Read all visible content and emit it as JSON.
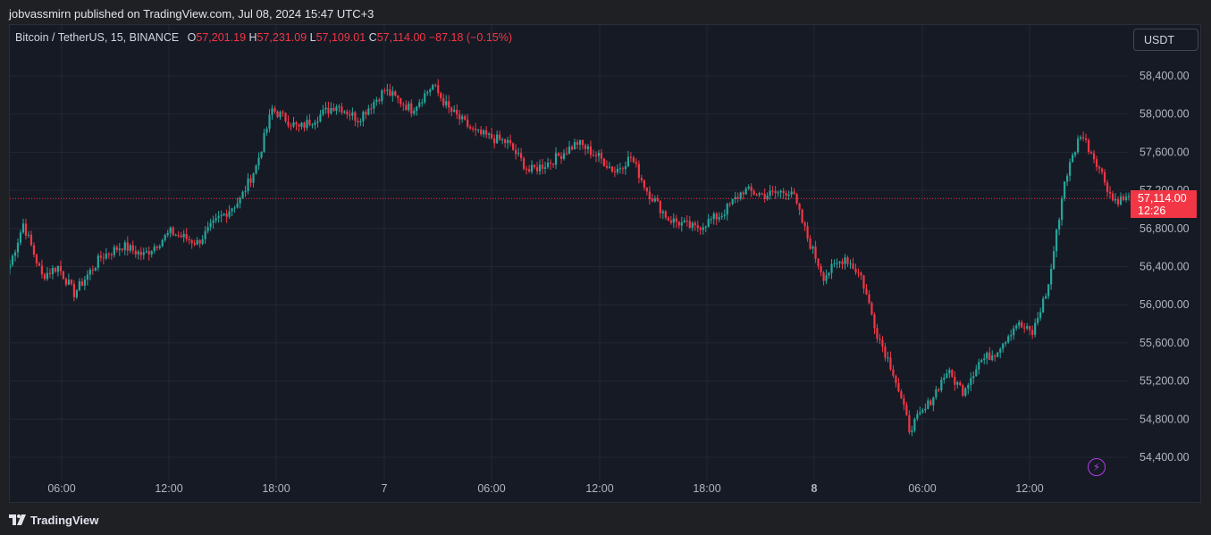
{
  "header": {
    "published_text": "jobvassmirn published on TradingView.com, Jul 08, 2024 15:47 UTC+3"
  },
  "legend": {
    "symbol": "Bitcoin / TetherUS, 15, BINANCE",
    "o_label": "O",
    "o_value": "57,201.19",
    "h_label": "H",
    "h_value": "57,231.09",
    "l_label": "L",
    "l_value": "57,109.01",
    "c_label": "C",
    "c_value": "57,114.00",
    "change": "−87.18 (−0.15%)"
  },
  "currency_button": "USDT",
  "last_price": {
    "price": "57,114.00",
    "countdown": "12:26"
  },
  "brand": "TradingView",
  "icons": {
    "bolt": "lightning-icon",
    "logo": "tradingview-logo-icon"
  },
  "colors": {
    "up": "#26a69a",
    "down": "#f23645",
    "background": "#161a25",
    "grid": "#232734"
  },
  "chart_data": {
    "type": "candlestick",
    "title": "Bitcoin / TetherUS, 15, BINANCE",
    "y_ticks": [
      "58,400.00",
      "58,000.00",
      "57,600.00",
      "57,200.00",
      "56,800.00",
      "56,400.00",
      "56,000.00",
      "55,600.00",
      "55,200.00",
      "54,800.00",
      "54,400.00"
    ],
    "y_tick_values": [
      58400,
      58000,
      57600,
      57200,
      56800,
      56400,
      56000,
      55600,
      55200,
      54800,
      54400
    ],
    "x_ticks": [
      "06:00",
      "12:00",
      "18:00",
      "7",
      "06:00",
      "12:00",
      "18:00",
      "8",
      "06:00",
      "12:00"
    ],
    "x_tick_bold": [
      false,
      false,
      false,
      false,
      false,
      false,
      false,
      true,
      false,
      false
    ],
    "ylim": [
      54250,
      58800
    ],
    "grid": true,
    "keypoints": [
      {
        "t": 0,
        "p": 56420
      },
      {
        "t": 5,
        "p": 56850
      },
      {
        "t": 12,
        "p": 56300
      },
      {
        "t": 18,
        "p": 56400
      },
      {
        "t": 24,
        "p": 56120
      },
      {
        "t": 34,
        "p": 56500
      },
      {
        "t": 42,
        "p": 56620
      },
      {
        "t": 50,
        "p": 56520
      },
      {
        "t": 60,
        "p": 56760
      },
      {
        "t": 70,
        "p": 56650
      },
      {
        "t": 78,
        "p": 56900
      },
      {
        "t": 86,
        "p": 57100
      },
      {
        "t": 92,
        "p": 57450
      },
      {
        "t": 98,
        "p": 58050
      },
      {
        "t": 108,
        "p": 57850
      },
      {
        "t": 122,
        "p": 58100
      },
      {
        "t": 130,
        "p": 57950
      },
      {
        "t": 140,
        "p": 58250
      },
      {
        "t": 150,
        "p": 58050
      },
      {
        "t": 158,
        "p": 58300
      },
      {
        "t": 164,
        "p": 58050
      },
      {
        "t": 174,
        "p": 57800
      },
      {
        "t": 186,
        "p": 57700
      },
      {
        "t": 194,
        "p": 57400
      },
      {
        "t": 202,
        "p": 57500
      },
      {
        "t": 212,
        "p": 57700
      },
      {
        "t": 220,
        "p": 57550
      },
      {
        "t": 226,
        "p": 57400
      },
      {
        "t": 232,
        "p": 57550
      },
      {
        "t": 238,
        "p": 57200
      },
      {
        "t": 246,
        "p": 56900
      },
      {
        "t": 256,
        "p": 56800
      },
      {
        "t": 266,
        "p": 56950
      },
      {
        "t": 274,
        "p": 57200
      },
      {
        "t": 282,
        "p": 57150
      },
      {
        "t": 292,
        "p": 57200
      },
      {
        "t": 298,
        "p": 56700
      },
      {
        "t": 304,
        "p": 56300
      },
      {
        "t": 312,
        "p": 56500
      },
      {
        "t": 318,
        "p": 56300
      },
      {
        "t": 324,
        "p": 55700
      },
      {
        "t": 330,
        "p": 55300
      },
      {
        "t": 336,
        "p": 54700
      },
      {
        "t": 342,
        "p": 54900
      },
      {
        "t": 350,
        "p": 55300
      },
      {
        "t": 356,
        "p": 55100
      },
      {
        "t": 362,
        "p": 55400
      },
      {
        "t": 368,
        "p": 55500
      },
      {
        "t": 376,
        "p": 55800
      },
      {
        "t": 382,
        "p": 55700
      },
      {
        "t": 388,
        "p": 56200
      },
      {
        "t": 394,
        "p": 57300
      },
      {
        "t": 400,
        "p": 57800
      },
      {
        "t": 406,
        "p": 57500
      },
      {
        "t": 412,
        "p": 57100
      },
      {
        "t": 420,
        "p": 57114
      }
    ],
    "last_value": 57114.0
  }
}
